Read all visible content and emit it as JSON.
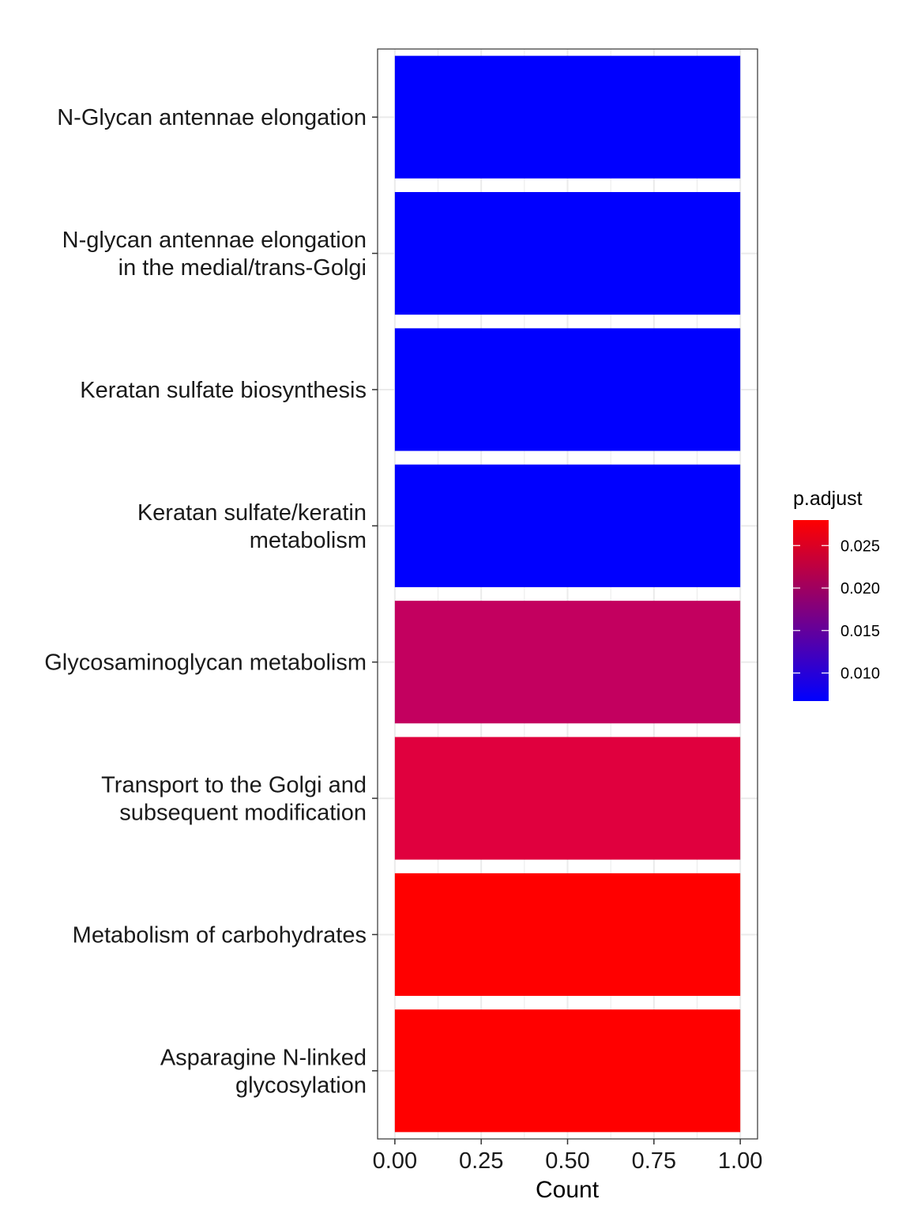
{
  "chart_data": {
    "type": "bar",
    "orientation": "horizontal",
    "xlabel": "Count",
    "xlim": [
      -0.05,
      1.05
    ],
    "xticks": [
      0.0,
      0.25,
      0.5,
      0.75,
      1.0
    ],
    "xtick_labels": [
      "0.00",
      "0.25",
      "0.50",
      "0.75",
      "1.00"
    ],
    "grid": true,
    "categories": [
      "N-Glycan antennae elongation",
      "N-glycan antennae elongation in the medial/trans-Golgi",
      "Keratan sulfate biosynthesis",
      "Keratan sulfate/keratin metabolism",
      "Glycosaminoglycan metabolism",
      "Transport to the Golgi and subsequent modification",
      "Metabolism of carbohydrates",
      "Asparagine N-linked glycosylation"
    ],
    "category_label_lines": [
      [
        "N-Glycan antennae elongation"
      ],
      [
        "N-glycan antennae elongation",
        "in the medial/trans-Golgi"
      ],
      [
        "Keratan sulfate biosynthesis"
      ],
      [
        "Keratan sulfate/keratin",
        "metabolism"
      ],
      [
        "Glycosaminoglycan metabolism"
      ],
      [
        "Transport to the Golgi and",
        "subsequent modification"
      ],
      [
        "Metabolism of carbohydrates"
      ],
      [
        "Asparagine N-linked",
        "glycosylation"
      ]
    ],
    "values": [
      1,
      1,
      1,
      1,
      1,
      1,
      1,
      1
    ],
    "p_adjust": [
      0.0067,
      0.0067,
      0.0067,
      0.0067,
      0.0195,
      0.0235,
      0.028,
      0.028
    ],
    "bar_colors": [
      "#0000FF",
      "#0000FF",
      "#0000FF",
      "#0000FF",
      "#C3005F",
      "#E0003E",
      "#FF0000",
      "#FF0000"
    ],
    "legend": {
      "title": "p.adjust",
      "placement": "right",
      "range": [
        0.0067,
        0.028
      ],
      "ticks": [
        0.025,
        0.02,
        0.015,
        0.01
      ],
      "tick_labels": [
        "0.025",
        "0.020",
        "0.015",
        "0.010"
      ],
      "low_color": "#0000FF",
      "high_color": "#FF0000"
    }
  }
}
